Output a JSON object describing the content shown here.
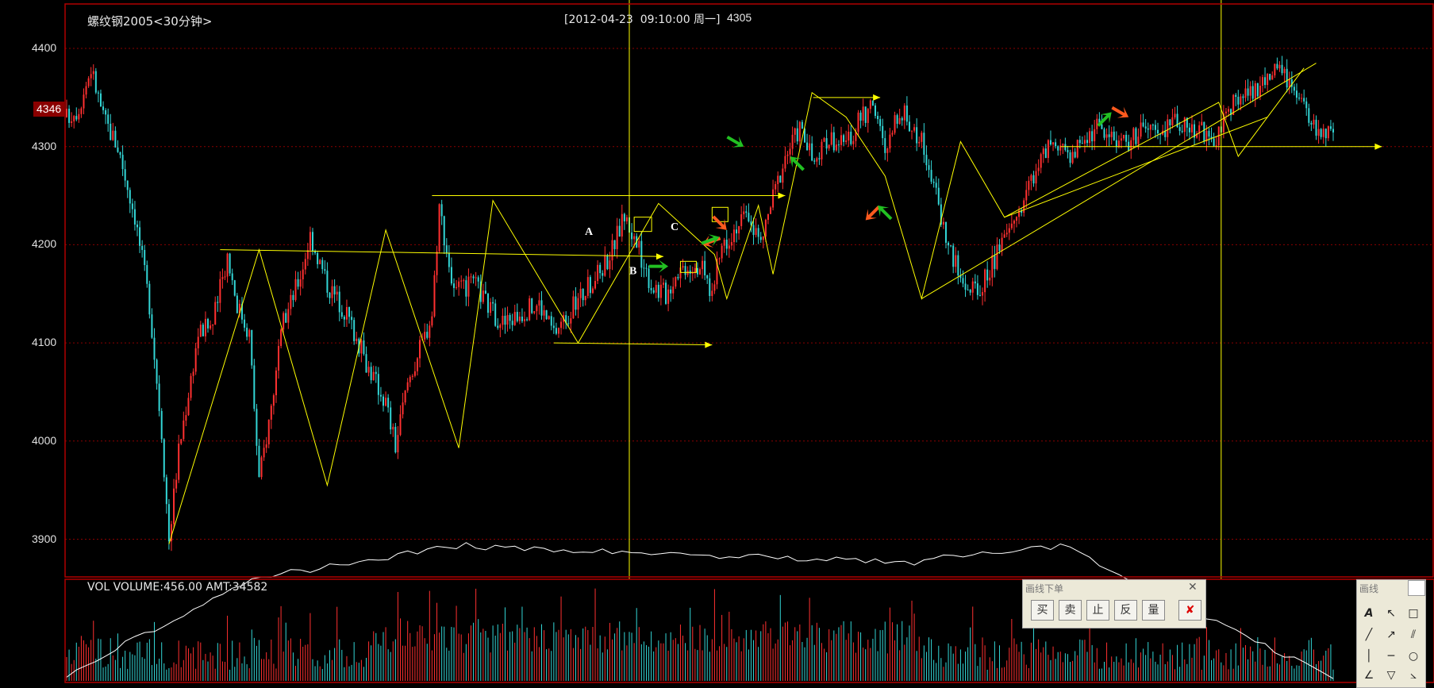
{
  "window": {
    "title": "螺纹钢2005<30分钟>",
    "cursor_info": "[2012-04-23  09:10:00 周一]",
    "cursor_price": "4305",
    "current_price": "4346",
    "volume_info": "VOL  VOLUME:456.00 AMT:34582"
  },
  "panels": {
    "order_title": "画线下单",
    "order_buttons": [
      "买",
      "卖",
      "止",
      "反",
      "量"
    ],
    "draw_title": "画线",
    "draw_tools": [
      "A",
      "↖",
      "□",
      "╱",
      "↗",
      "⫽",
      "│",
      "─",
      "○",
      "∠",
      "▽",
      "⦣"
    ]
  },
  "annotations": [
    "A",
    "B",
    "C"
  ],
  "colors": {
    "background": "#000000",
    "border": "#b00000",
    "grid": "#8b0000",
    "up": "#ff3030",
    "down": "#33d6d6",
    "drawing": "#ffff00",
    "volume_line": "#ffffff",
    "arrow_green": "#22c022",
    "arrow_orange": "#ff5a1e"
  },
  "chart_data": [
    {
      "type": "candlestick",
      "title": "螺纹钢2005<30分钟>",
      "y_ticks": [
        4400,
        4300,
        4200,
        4100,
        4000,
        3900
      ],
      "ylim": [
        3860,
        4440
      ],
      "grid": "horizontal dashed",
      "close_path": [
        [
          0,
          4330
        ],
        [
          10,
          4340
        ],
        [
          20,
          4380
        ],
        [
          30,
          4330
        ],
        [
          42,
          4300
        ],
        [
          56,
          4230
        ],
        [
          68,
          4140
        ],
        [
          78,
          4010
        ],
        [
          84,
          3900
        ],
        [
          92,
          3990
        ],
        [
          108,
          4110
        ],
        [
          120,
          4120
        ],
        [
          132,
          4190
        ],
        [
          140,
          4140
        ],
        [
          150,
          4110
        ],
        [
          158,
          3960
        ],
        [
          166,
          4020
        ],
        [
          178,
          4120
        ],
        [
          192,
          4170
        ],
        [
          200,
          4210
        ],
        [
          214,
          4160
        ],
        [
          230,
          4130
        ],
        [
          246,
          4080
        ],
        [
          262,
          4040
        ],
        [
          270,
          3995
        ],
        [
          280,
          4060
        ],
        [
          292,
          4100
        ],
        [
          300,
          4130
        ],
        [
          306,
          4240
        ],
        [
          318,
          4150
        ],
        [
          335,
          4160
        ],
        [
          350,
          4130
        ],
        [
          360,
          4120
        ],
        [
          372,
          4130
        ],
        [
          388,
          4140
        ],
        [
          400,
          4110
        ],
        [
          412,
          4130
        ],
        [
          424,
          4150
        ],
        [
          436,
          4170
        ],
        [
          446,
          4190
        ],
        [
          458,
          4230
        ],
        [
          468,
          4200
        ],
        [
          480,
          4160
        ],
        [
          492,
          4150
        ],
        [
          502,
          4175
        ],
        [
          510,
          4180
        ],
        [
          520,
          4180
        ],
        [
          530,
          4150
        ],
        [
          538,
          4200
        ],
        [
          550,
          4220
        ],
        [
          560,
          4230
        ],
        [
          570,
          4200
        ],
        [
          578,
          4240
        ],
        [
          590,
          4290
        ],
        [
          602,
          4320
        ],
        [
          614,
          4280
        ],
        [
          626,
          4310
        ],
        [
          640,
          4300
        ],
        [
          652,
          4330
        ],
        [
          664,
          4340
        ],
        [
          672,
          4290
        ],
        [
          684,
          4340
        ],
        [
          694,
          4320
        ],
        [
          704,
          4300
        ],
        [
          714,
          4250
        ],
        [
          724,
          4200
        ],
        [
          736,
          4160
        ],
        [
          748,
          4150
        ],
        [
          760,
          4180
        ],
        [
          772,
          4210
        ],
        [
          784,
          4240
        ],
        [
          796,
          4280
        ],
        [
          808,
          4300
        ],
        [
          820,
          4290
        ],
        [
          830,
          4300
        ],
        [
          846,
          4320
        ],
        [
          860,
          4310
        ],
        [
          872,
          4305
        ],
        [
          886,
          4320
        ],
        [
          898,
          4310
        ],
        [
          910,
          4330
        ],
        [
          920,
          4320
        ],
        [
          932,
          4320
        ],
        [
          940,
          4300
        ],
        [
          952,
          4330
        ],
        [
          962,
          4350
        ],
        [
          974,
          4355
        ],
        [
          986,
          4370
        ],
        [
          998,
          4380
        ],
        [
          1008,
          4350
        ],
        [
          1016,
          4340
        ],
        [
          1024,
          4320
        ],
        [
          1032,
          4315
        ],
        [
          1040,
          4310
        ]
      ],
      "annotations": [
        {
          "label": "A",
          "x": 737,
          "y": 4210
        },
        {
          "label": "B",
          "x": 793,
          "y": 4170
        },
        {
          "label": "C",
          "x": 845,
          "y": 4215
        }
      ]
    },
    {
      "type": "bar",
      "title": "VOL",
      "series": [
        {
          "name": "VOLUME",
          "latest": 456.0
        },
        {
          "name": "AMT",
          "latest": 34582
        }
      ]
    }
  ]
}
